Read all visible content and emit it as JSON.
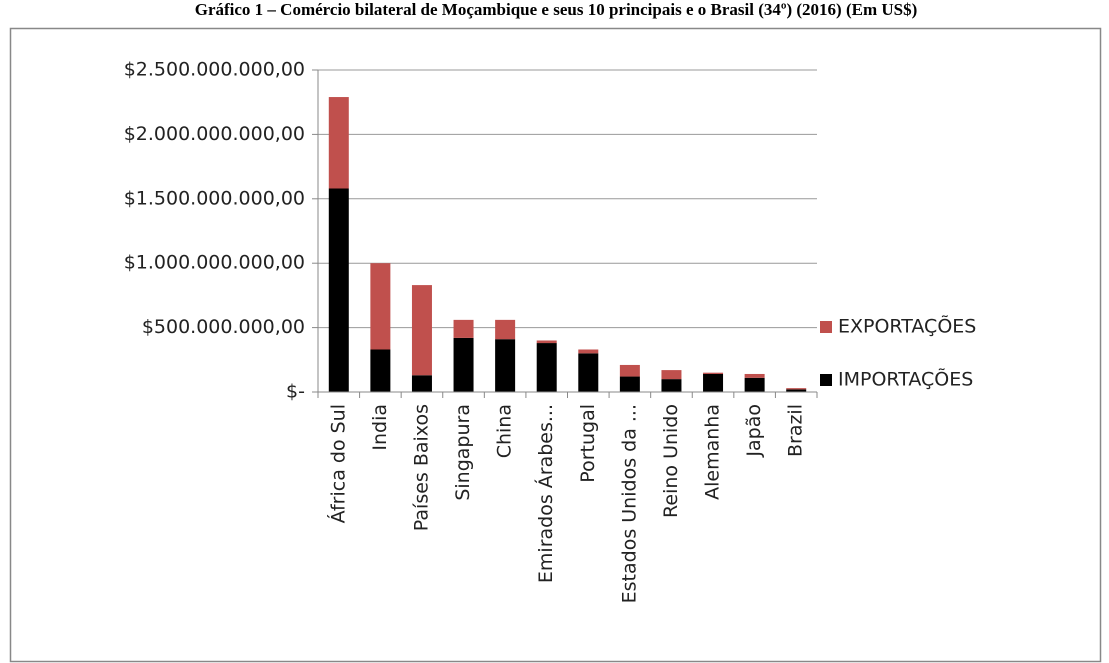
{
  "chart_data": {
    "type": "stacked_bar",
    "title": "Gráfico 1 – Comércio bilateral de Moçambique e seus 10 principais e o Brasil (34º) (2016) (Em US$)",
    "categories": [
      "África do Sul",
      "India",
      "Países Baixos",
      "Singapura",
      "China",
      "Emirados Árabes...",
      "Portugal",
      "Estados Unidos da ...",
      "Reino Unido",
      "Alemanha",
      "Japão",
      "Brazil"
    ],
    "series": [
      {
        "name": "IMPORTAÇÕES",
        "color": "#000000",
        "values": [
          1580000000,
          330000000,
          130000000,
          420000000,
          410000000,
          380000000,
          300000000,
          120000000,
          100000000,
          140000000,
          110000000,
          20000000
        ]
      },
      {
        "name": "EXPORTAÇÕES",
        "color": "#c0504d",
        "values": [
          710000000,
          670000000,
          700000000,
          140000000,
          150000000,
          20000000,
          30000000,
          90000000,
          70000000,
          10000000,
          30000000,
          10000000
        ]
      }
    ],
    "ylim": [
      0,
      2500000000
    ],
    "yticks": [
      {
        "value": 0,
        "label": "$-"
      },
      {
        "value": 500000000,
        "label": "$500.000.000,00"
      },
      {
        "value": 1000000000,
        "label": "$1.000.000.000,00"
      },
      {
        "value": 1500000000,
        "label": "$1.500.000.000,00"
      },
      {
        "value": 2000000000,
        "label": "$2.000.000.000,00"
      },
      {
        "value": 2500000000,
        "label": "$2.500.000.000,00"
      }
    ],
    "grid": true,
    "legend": "right"
  }
}
